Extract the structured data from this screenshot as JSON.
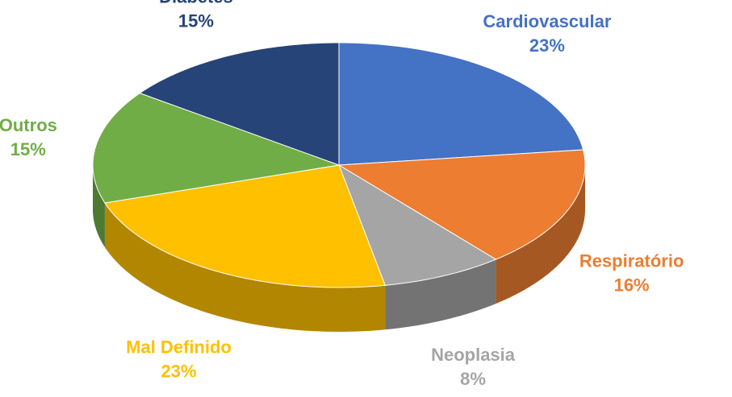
{
  "chart_data": {
    "type": "pie3d",
    "categories": [
      "Cardiovascular",
      "Respiratório",
      "Neoplasia",
      "Mal Definido",
      "Outros",
      "Diabetes"
    ],
    "values": [
      23,
      16,
      8,
      23,
      15,
      15
    ],
    "value_labels": [
      "23%",
      "16%",
      "8%",
      "23%",
      "15%",
      "15%"
    ],
    "colors": [
      "#4472c4",
      "#ed7d31",
      "#a5a5a5",
      "#ffc000",
      "#70ad47",
      "#264478"
    ]
  }
}
